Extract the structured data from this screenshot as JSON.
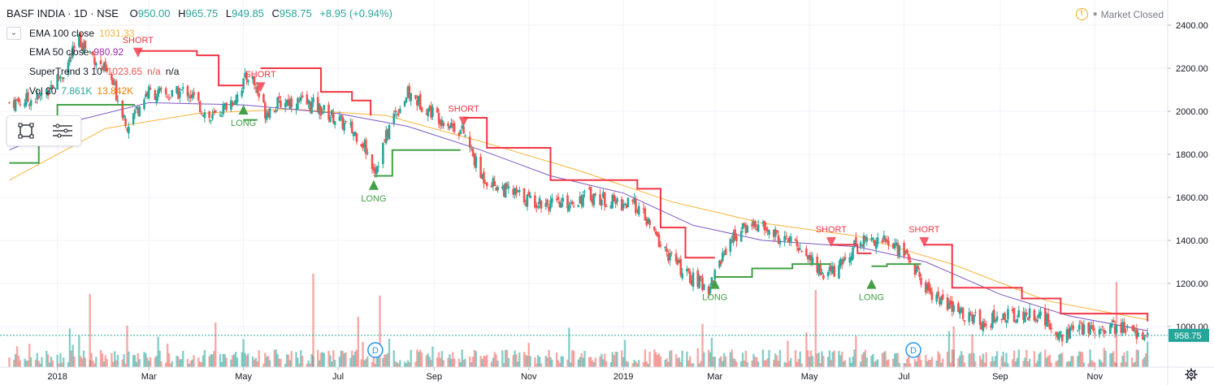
{
  "header": {
    "symbol": "BASF INDIA · 1D · NSE",
    "o_label": "O",
    "o": "950.00",
    "h_label": "H",
    "h": "965.75",
    "l_label": "L",
    "l": "949.85",
    "c_label": "C",
    "c": "958.75",
    "change": "+8.95 (+0.94%)"
  },
  "status": {
    "text": "Market Closed"
  },
  "legend": [
    {
      "label": "EMA 100 close",
      "values": [
        "1031.33"
      ],
      "colors": [
        "#f9b43a"
      ]
    },
    {
      "label": "EMA 50 close",
      "values": [
        "980.92"
      ],
      "colors": [
        "#9c27b0"
      ]
    },
    {
      "label": "SuperTrend 3 10",
      "values": [
        "1023.65",
        "n/a",
        "n/a"
      ],
      "colors": [
        "#ef5350",
        "#ef5350",
        "#131722"
      ]
    },
    {
      "label": "Vol 20",
      "values": [
        "7.861K",
        "13.842K"
      ],
      "colors": [
        "#26a69a",
        "#f57c00"
      ]
    }
  ],
  "toolbox": {
    "icons": [
      "rectangle-tool-icon",
      "settings-lines-icon"
    ]
  },
  "colors": {
    "up": "#26a69a",
    "down": "#ef5350",
    "supertrend_up": "#43a047",
    "supertrend_down": "#f23645",
    "ema100": "#f9b43a",
    "ema50": "#7e57c2",
    "price_tag": "#26a69a"
  },
  "chart_data": {
    "type": "candlestick",
    "title": "BASF INDIA · 1D · NSE",
    "x_tick_labels": [
      "2018",
      "Mar",
      "May",
      "Jul",
      "Sep",
      "Nov",
      "2019",
      "Mar",
      "May",
      "Jul",
      "Sep",
      "Nov"
    ],
    "y_tick_labels": [
      "2400.00",
      "2200.00",
      "2000.00",
      "1800.00",
      "1600.00",
      "1400.00",
      "1200.00",
      "1000.00"
    ],
    "ylim": [
      900,
      2440
    ],
    "last_price": "958.75",
    "close_path": [
      [
        "2017-12-01",
        2040
      ],
      [
        "2017-12-20",
        2060
      ],
      [
        "2018-01-05",
        2180
      ],
      [
        "2018-01-15",
        2330
      ],
      [
        "2018-01-25",
        2250
      ],
      [
        "2018-02-05",
        2140
      ],
      [
        "2018-02-15",
        1940
      ],
      [
        "2018-02-28",
        2090
      ],
      [
        "2018-03-15",
        2070
      ],
      [
        "2018-03-25",
        2100
      ],
      [
        "2018-04-10",
        1960
      ],
      [
        "2018-04-25",
        2060
      ],
      [
        "2018-05-05",
        2180
      ],
      [
        "2018-05-15",
        2000
      ],
      [
        "2018-05-28",
        2050
      ],
      [
        "2018-06-15",
        2030
      ],
      [
        "2018-07-01",
        1960
      ],
      [
        "2018-07-15",
        1880
      ],
      [
        "2018-07-25",
        1730
      ],
      [
        "2018-08-05",
        1970
      ],
      [
        "2018-08-15",
        2080
      ],
      [
        "2018-09-01",
        1990
      ],
      [
        "2018-09-20",
        1900
      ],
      [
        "2018-10-01",
        1700
      ],
      [
        "2018-10-15",
        1640
      ],
      [
        "2018-11-01",
        1590
      ],
      [
        "2018-11-20",
        1560
      ],
      [
        "2018-12-10",
        1610
      ],
      [
        "2018-12-25",
        1580
      ],
      [
        "2019-01-10",
        1560
      ],
      [
        "2019-01-25",
        1380
      ],
      [
        "2019-02-10",
        1240
      ],
      [
        "2019-02-25",
        1180
      ],
      [
        "2019-03-10",
        1400
      ],
      [
        "2019-03-25",
        1480
      ],
      [
        "2019-04-10",
        1420
      ],
      [
        "2019-04-25",
        1370
      ],
      [
        "2019-05-10",
        1240
      ],
      [
        "2019-05-20",
        1270
      ],
      [
        "2019-06-01",
        1400
      ],
      [
        "2019-06-15",
        1410
      ],
      [
        "2019-07-01",
        1350
      ],
      [
        "2019-07-15",
        1180
      ],
      [
        "2019-08-01",
        1080
      ],
      [
        "2019-08-20",
        1020
      ],
      [
        "2019-09-05",
        1050
      ],
      [
        "2019-09-25",
        1060
      ],
      [
        "2019-10-10",
        960
      ],
      [
        "2019-10-25",
        990
      ],
      [
        "2019-11-10",
        1000
      ],
      [
        "2019-11-25",
        980
      ],
      [
        "2019-12-05",
        958.75
      ]
    ],
    "ema50_path": [
      [
        "2017-12-01",
        1820
      ],
      [
        "2018-01-15",
        1960
      ],
      [
        "2018-03-01",
        2040
      ],
      [
        "2018-05-01",
        2030
      ],
      [
        "2018-07-01",
        1990
      ],
      [
        "2018-08-15",
        1930
      ],
      [
        "2018-10-01",
        1820
      ],
      [
        "2018-11-15",
        1700
      ],
      [
        "2019-01-01",
        1620
      ],
      [
        "2019-02-15",
        1470
      ],
      [
        "2019-04-01",
        1400
      ],
      [
        "2019-06-01",
        1370
      ],
      [
        "2019-07-15",
        1300
      ],
      [
        "2019-09-01",
        1150
      ],
      [
        "2019-10-15",
        1050
      ],
      [
        "2019-12-05",
        980.92
      ]
    ],
    "ema100_path": [
      [
        "2017-12-01",
        1680
      ],
      [
        "2018-02-01",
        1920
      ],
      [
        "2018-04-01",
        1990
      ],
      [
        "2018-06-01",
        2010
      ],
      [
        "2018-08-01",
        1980
      ],
      [
        "2018-10-01",
        1860
      ],
      [
        "2018-12-01",
        1730
      ],
      [
        "2019-02-01",
        1580
      ],
      [
        "2019-04-01",
        1480
      ],
      [
        "2019-06-01",
        1420
      ],
      [
        "2019-08-01",
        1290
      ],
      [
        "2019-10-01",
        1120
      ],
      [
        "2019-12-05",
        1031.33
      ]
    ],
    "supertrend": [
      {
        "dir": "up",
        "points": [
          [
            "2017-12-01",
            1760
          ],
          [
            "2017-12-20",
            1880
          ],
          [
            "2018-01-01",
            2030
          ],
          [
            "2018-02-20",
            2030
          ]
        ]
      },
      {
        "dir": "down",
        "points": [
          [
            "2018-02-22",
            2280
          ],
          [
            "2018-04-01",
            2260
          ],
          [
            "2018-04-15",
            2120
          ],
          [
            "2018-05-01",
            2120
          ]
        ]
      },
      {
        "dir": "up",
        "points": [
          [
            "2018-05-01",
            1960
          ],
          [
            "2018-05-10",
            1960
          ]
        ]
      },
      {
        "dir": "down",
        "points": [
          [
            "2018-05-12",
            2200
          ],
          [
            "2018-06-10",
            2200
          ],
          [
            "2018-06-20",
            2090
          ],
          [
            "2018-07-10",
            2050
          ],
          [
            "2018-07-22",
            1980
          ]
        ]
      },
      {
        "dir": "up",
        "points": [
          [
            "2018-07-24",
            1700
          ],
          [
            "2018-08-05",
            1820
          ],
          [
            "2018-09-18",
            1820
          ]
        ]
      },
      {
        "dir": "down",
        "points": [
          [
            "2018-09-20",
            1970
          ],
          [
            "2018-10-05",
            1830
          ],
          [
            "2018-11-05",
            1830
          ],
          [
            "2018-11-15",
            1680
          ],
          [
            "2018-12-25",
            1680
          ],
          [
            "2019-01-10",
            1640
          ],
          [
            "2019-01-25",
            1460
          ],
          [
            "2019-02-10",
            1320
          ],
          [
            "2019-03-01",
            1320
          ]
        ]
      },
      {
        "dir": "up",
        "points": [
          [
            "2019-03-01",
            1230
          ],
          [
            "2019-03-25",
            1270
          ],
          [
            "2019-04-20",
            1290
          ],
          [
            "2019-05-15",
            1290
          ]
        ]
      },
      {
        "dir": "down",
        "points": [
          [
            "2019-05-15",
            1380
          ],
          [
            "2019-06-01",
            1340
          ],
          [
            "2019-06-10",
            1340
          ]
        ]
      },
      {
        "dir": "up",
        "points": [
          [
            "2019-06-10",
            1280
          ],
          [
            "2019-06-20",
            1290
          ],
          [
            "2019-07-12",
            1290
          ]
        ]
      },
      {
        "dir": "down",
        "points": [
          [
            "2019-07-14",
            1380
          ],
          [
            "2019-08-01",
            1180
          ],
          [
            "2019-09-15",
            1130
          ],
          [
            "2019-10-10",
            1060
          ],
          [
            "2019-11-25",
            1060
          ],
          [
            "2019-12-05",
            1023.65
          ]
        ]
      }
    ],
    "signals": [
      {
        "type": "SHORT",
        "date": "2018-02-22",
        "price": 2280
      },
      {
        "type": "LONG",
        "date": "2018-05-01",
        "price": 2000
      },
      {
        "type": "SHORT",
        "date": "2018-05-12",
        "price": 2120
      },
      {
        "type": "LONG",
        "date": "2018-07-24",
        "price": 1650
      },
      {
        "type": "SHORT",
        "date": "2018-09-20",
        "price": 1960
      },
      {
        "type": "LONG",
        "date": "2019-03-01",
        "price": 1190
      },
      {
        "type": "SHORT",
        "date": "2019-05-15",
        "price": 1400
      },
      {
        "type": "LONG",
        "date": "2019-06-10",
        "price": 1190
      },
      {
        "type": "SHORT",
        "date": "2019-07-14",
        "price": 1400
      }
    ],
    "dividend_markers": [
      {
        "label": "D",
        "date": "2018-07-25"
      },
      {
        "label": "D",
        "date": "2019-07-07"
      }
    ]
  }
}
